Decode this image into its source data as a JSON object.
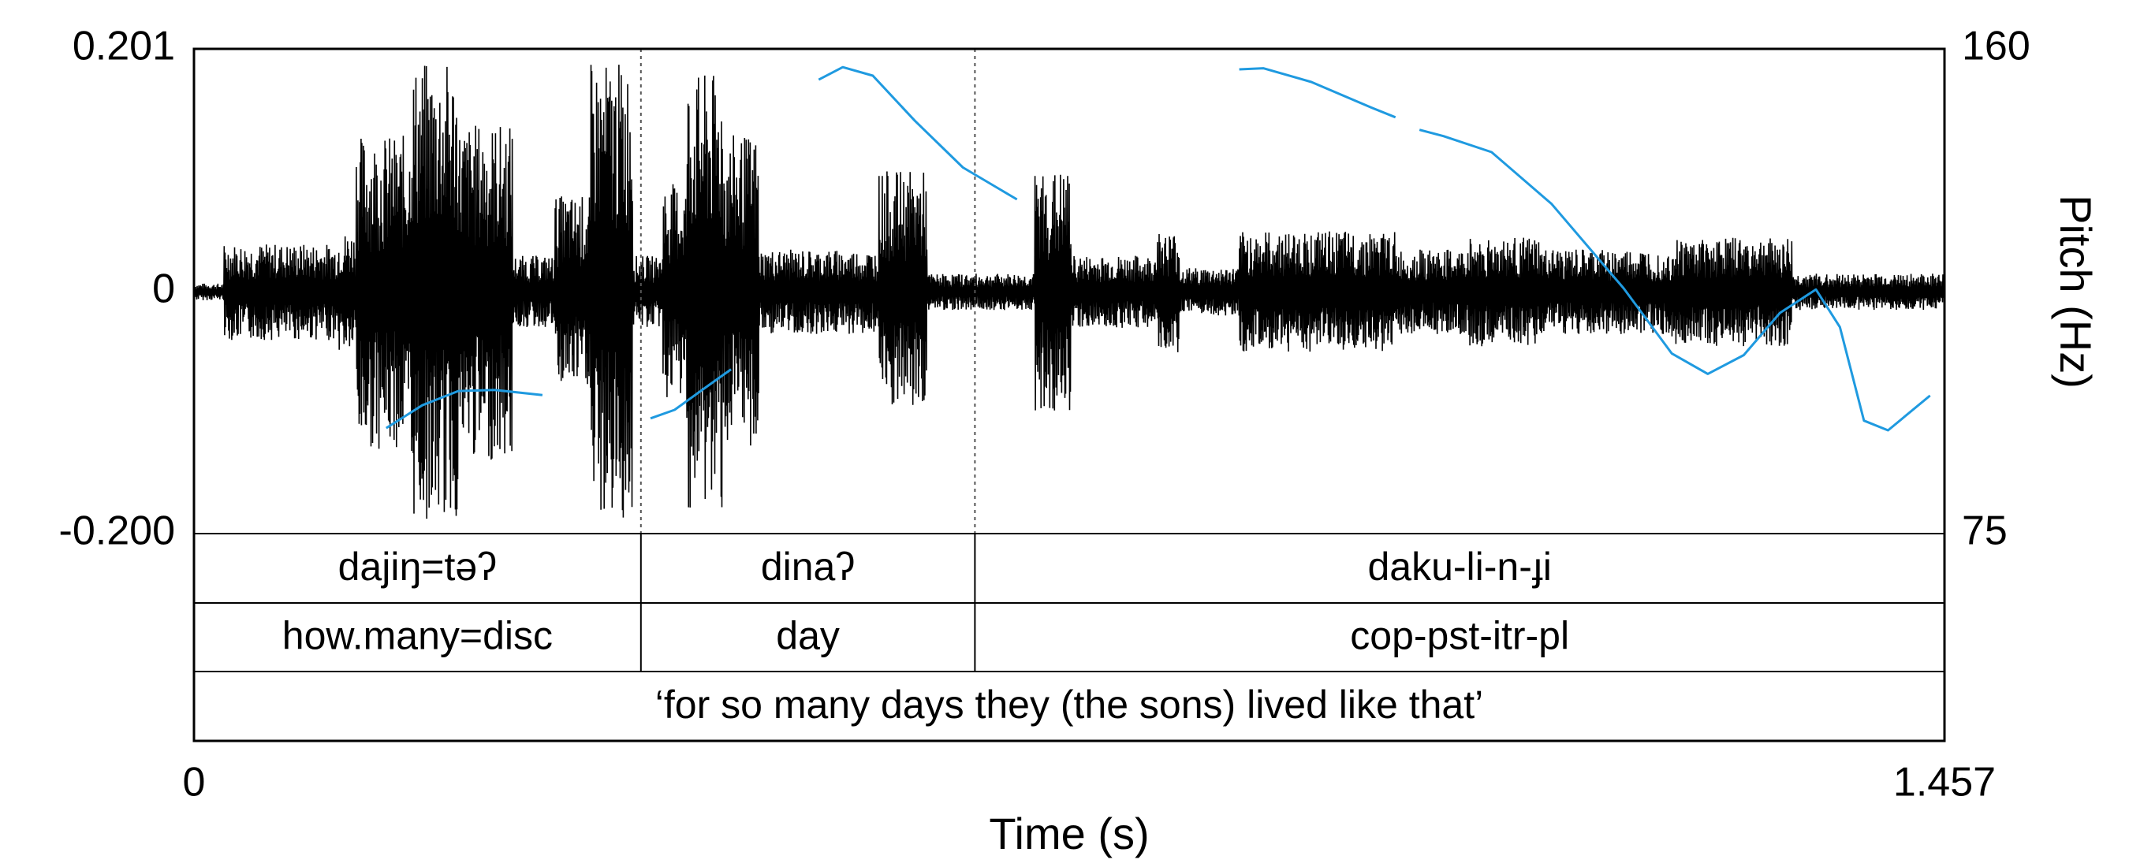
{
  "chart_data": {
    "type": "line",
    "xlabel": "Time (s)",
    "ylabel_right": "Pitch (Hz)",
    "xlim": [
      0,
      1.457
    ],
    "xtick_labels": [
      "0",
      "1.457"
    ],
    "amplitude_ylim": [
      -0.2,
      0.201
    ],
    "amplitude_tick_labels": [
      "0.201",
      "0",
      "-0.200"
    ],
    "pitch_ylim": [
      75,
      160
    ],
    "pitch_tick_labels": [
      "160",
      "75"
    ],
    "colors": {
      "waveform": "#000000",
      "pitch": "#1f9ae0"
    },
    "boundaries": [
      0.372,
      0.65
    ],
    "waveform_segments": [
      {
        "t0": 0.0,
        "t1": 0.025,
        "amp": 0.007
      },
      {
        "t0": 0.025,
        "t1": 0.12,
        "amp": 0.04
      },
      {
        "t0": 0.12,
        "t1": 0.135,
        "amp": 0.05
      },
      {
        "t0": 0.135,
        "t1": 0.18,
        "amp": 0.13
      },
      {
        "t0": 0.18,
        "t1": 0.22,
        "amp": 0.19
      },
      {
        "t0": 0.22,
        "t1": 0.265,
        "amp": 0.14
      },
      {
        "t0": 0.265,
        "t1": 0.3,
        "amp": 0.03
      },
      {
        "t0": 0.3,
        "t1": 0.33,
        "amp": 0.08
      },
      {
        "t0": 0.33,
        "t1": 0.365,
        "amp": 0.19
      },
      {
        "t0": 0.365,
        "t1": 0.39,
        "amp": 0.03
      },
      {
        "t0": 0.39,
        "t1": 0.41,
        "amp": 0.09
      },
      {
        "t0": 0.41,
        "t1": 0.44,
        "amp": 0.18
      },
      {
        "t0": 0.44,
        "t1": 0.47,
        "amp": 0.13
      },
      {
        "t0": 0.47,
        "t1": 0.57,
        "amp": 0.035
      },
      {
        "t0": 0.57,
        "t1": 0.61,
        "amp": 0.1
      },
      {
        "t0": 0.61,
        "t1": 0.7,
        "amp": 0.015
      },
      {
        "t0": 0.7,
        "t1": 0.73,
        "amp": 0.1
      },
      {
        "t0": 0.73,
        "t1": 0.8,
        "amp": 0.03
      },
      {
        "t0": 0.8,
        "t1": 0.82,
        "amp": 0.05
      },
      {
        "t0": 0.82,
        "t1": 0.87,
        "amp": 0.02
      },
      {
        "t0": 0.87,
        "t1": 1.0,
        "amp": 0.05
      },
      {
        "t0": 1.0,
        "t1": 1.06,
        "amp": 0.035
      },
      {
        "t0": 1.06,
        "t1": 1.12,
        "amp": 0.045
      },
      {
        "t0": 1.12,
        "t1": 1.23,
        "amp": 0.035
      },
      {
        "t0": 1.23,
        "t1": 1.33,
        "amp": 0.045
      },
      {
        "t0": 1.33,
        "t1": 1.457,
        "amp": 0.015
      }
    ],
    "pitch_series": [
      {
        "points": [
          [
            0.16,
            93.5
          ],
          [
            0.19,
            97.5
          ],
          [
            0.22,
            100.0
          ],
          [
            0.25,
            100.2
          ],
          [
            0.29,
            99.3
          ]
        ]
      },
      {
        "points": [
          [
            0.38,
            95.2
          ],
          [
            0.4,
            96.7
          ],
          [
            0.425,
            100.5
          ],
          [
            0.447,
            103.8
          ]
        ]
      },
      {
        "points": [
          [
            0.52,
            154.6
          ],
          [
            0.54,
            156.8
          ],
          [
            0.565,
            155.3
          ],
          [
            0.6,
            147.4
          ],
          [
            0.64,
            139.2
          ],
          [
            0.685,
            133.6
          ]
        ]
      },
      {
        "points": [
          [
            0.87,
            156.4
          ],
          [
            0.89,
            156.6
          ],
          [
            0.93,
            154.2
          ],
          [
            0.98,
            149.7
          ],
          [
            1.0,
            148.0
          ]
        ]
      },
      {
        "points": [
          [
            1.02,
            145.8
          ],
          [
            1.04,
            144.7
          ],
          [
            1.08,
            141.9
          ],
          [
            1.13,
            132.8
          ],
          [
            1.19,
            118.0
          ],
          [
            1.23,
            106.6
          ],
          [
            1.26,
            103.0
          ],
          [
            1.29,
            106.3
          ],
          [
            1.32,
            113.7
          ],
          [
            1.35,
            117.8
          ],
          [
            1.37,
            111.2
          ],
          [
            1.39,
            94.8
          ],
          [
            1.41,
            93.1
          ],
          [
            1.445,
            99.2
          ]
        ]
      }
    ],
    "tiers": [
      {
        "name": "words",
        "cells": [
          {
            "t0": 0,
            "t1": 0.372,
            "text": "dajiŋ=təʔ"
          },
          {
            "t0": 0.372,
            "t1": 0.65,
            "text": "dinaʔ"
          },
          {
            "t0": 0.65,
            "t1": 1.457,
            "text": "daku-li-n-ɟi"
          }
        ]
      },
      {
        "name": "gloss",
        "cells": [
          {
            "t0": 0,
            "t1": 0.372,
            "text": "how.many=disc"
          },
          {
            "t0": 0.372,
            "t1": 0.65,
            "text": "day"
          },
          {
            "t0": 0.65,
            "t1": 1.457,
            "text": "cop-pst-itr-pl"
          }
        ]
      },
      {
        "name": "translation",
        "cells": [
          {
            "t0": 0,
            "t1": 1.457,
            "text": "‘for so many days they (the sons) lived like that’"
          }
        ]
      }
    ]
  }
}
